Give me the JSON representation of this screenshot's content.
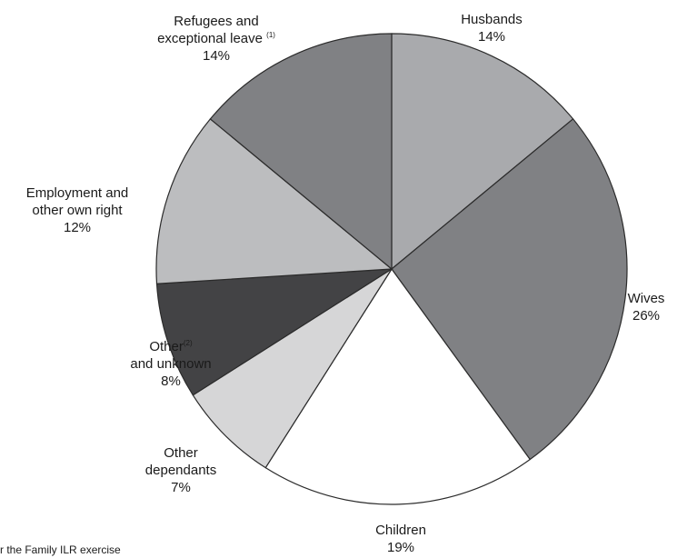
{
  "chart_data": {
    "type": "pie",
    "title": "",
    "slices": [
      {
        "name": "Husbands",
        "value": 14,
        "percent_label": "14%",
        "color": "#a9aaad",
        "label_lines": [
          "Husbands"
        ],
        "note": ""
      },
      {
        "name": "Wives",
        "value": 26,
        "percent_label": "26%",
        "color": "#808184",
        "label_lines": [
          "Wives"
        ],
        "note": ""
      },
      {
        "name": "Children",
        "value": 19,
        "percent_label": "19%",
        "color": "#ffffff",
        "label_lines": [
          "Children"
        ],
        "note": ""
      },
      {
        "name": "Other dependants",
        "value": 7,
        "percent_label": "7%",
        "color": "#d6d6d7",
        "label_lines": [
          "Other",
          "dependants"
        ],
        "note": ""
      },
      {
        "name": "Other and unknown",
        "value": 8,
        "percent_label": "8%",
        "color": "#434345",
        "label_lines": [
          "Other",
          "and unknown"
        ],
        "note": "(2)"
      },
      {
        "name": "Employment and other own right",
        "value": 12,
        "percent_label": "12%",
        "color": "#bcbdbf",
        "label_lines": [
          "Employment and",
          "other own right"
        ],
        "note": ""
      },
      {
        "name": "Refugees and exceptional leave",
        "value": 14,
        "percent_label": "14%",
        "color": "#808184",
        "label_lines": [
          "Refugees and",
          "exceptional leave"
        ],
        "note": "(1)"
      }
    ],
    "start_angle_deg": 0,
    "direction": "clockwise"
  },
  "footnote": "r the Family ILR exercise"
}
